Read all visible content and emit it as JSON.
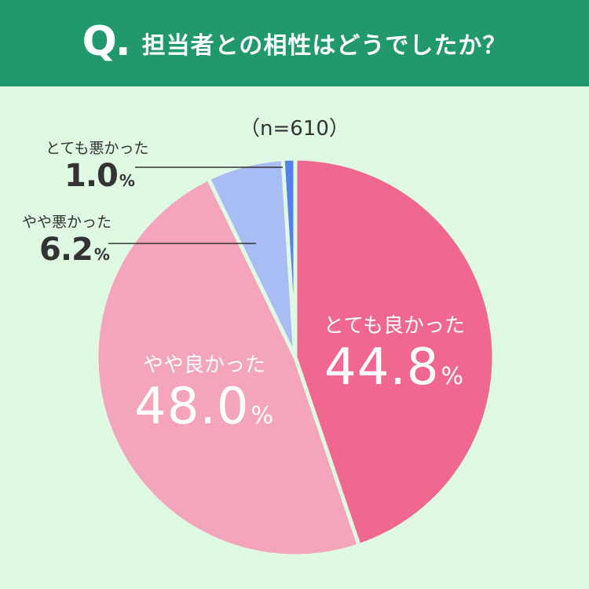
{
  "header": {
    "q_mark": "Q.",
    "question": "担当者との相性はどうでしたか？"
  },
  "sample": "（n=610）",
  "colors": {
    "header_bg": "#21996d",
    "background": "#dff9e3"
  },
  "chart_data": {
    "type": "pie",
    "title": "担当者との相性はどうでしたか？",
    "n": 610,
    "slices": [
      {
        "label": "とても良かった",
        "value": 44.8,
        "display": "44.8",
        "color": "#f0688f"
      },
      {
        "label": "やや良かった",
        "value": 48.0,
        "display": "48.0",
        "color": "#f4a5bc"
      },
      {
        "label": "やや悪かった",
        "value": 6.2,
        "display": "6.2",
        "color": "#a9bdf5"
      },
      {
        "label": "とても悪かった",
        "value": 1.0,
        "display": "1.0",
        "color": "#5581ea"
      }
    ],
    "unit": "%"
  }
}
